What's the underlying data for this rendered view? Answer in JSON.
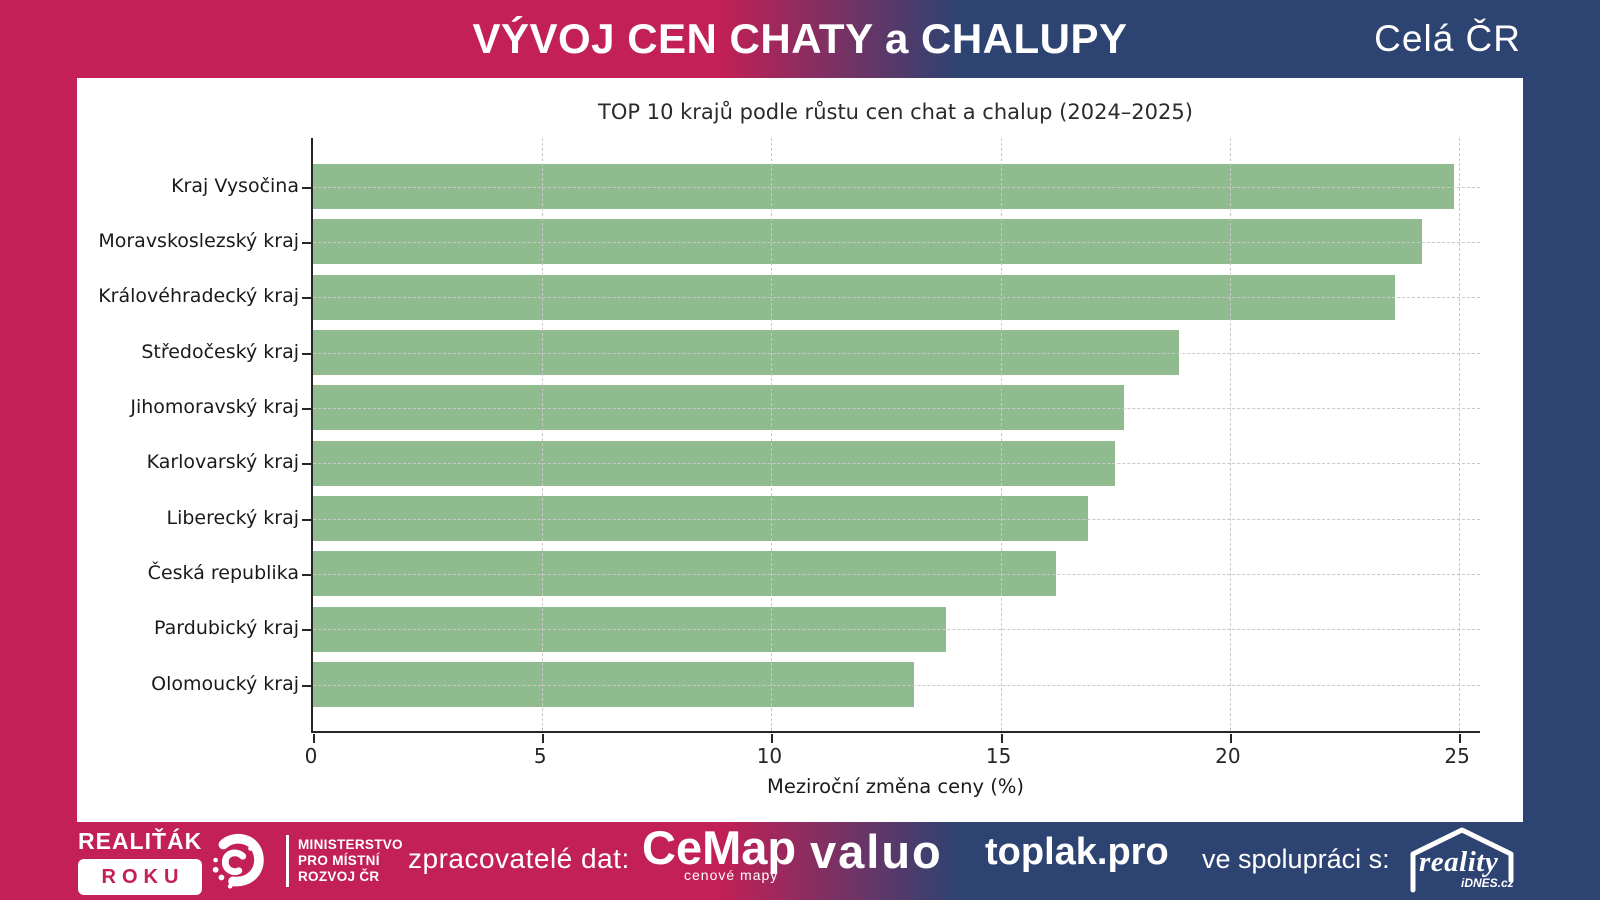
{
  "header": {
    "title": "VÝVOJ CEN CHATY a CHALUPY",
    "region": "Celá ČR"
  },
  "chart_data": {
    "type": "bar",
    "orientation": "horizontal",
    "title": "TOP 10 krajů podle růstu cen chat a chalup (2024–2025)",
    "categories": [
      "Kraj Vysočina",
      "Moravskoslezský kraj",
      "Královéhradecký kraj",
      "Středočeský kraj",
      "Jihomoravský kraj",
      "Karlovarský kraj",
      "Liberecký kraj",
      "Česká republika",
      "Pardubický kraj",
      "Olomoucký kraj"
    ],
    "values": [
      24.9,
      24.2,
      23.6,
      18.9,
      17.7,
      17.5,
      16.9,
      16.2,
      13.8,
      13.1
    ],
    "xlabel": "Meziroční změna ceny (%)",
    "xticks": [
      0,
      5,
      10,
      15,
      20,
      25
    ],
    "xlim": [
      0,
      25.5
    ],
    "grid": "dashed, both axes, drawn over bars",
    "legend": "none",
    "bar_color": "#8fbb8e"
  },
  "footer": {
    "realitak_line1": "REALIŤÁK",
    "realitak_line2": "ROKU",
    "ministry_lines": [
      "MINISTERSTVO",
      "PRO MÍSTNÍ",
      "ROZVOJ ČR"
    ],
    "data_processors_label": "zpracovatelé dat:",
    "cemap_label": "CeMap",
    "cemap_sublabel": "cenové mapy",
    "valuo_label": "valuo",
    "toplak_label": "toplak.pro",
    "cooperation_label": "ve spolupráci s:",
    "reality_label": "reality",
    "reality_sublabel": "iDNES.cz"
  },
  "colors": {
    "crimson": "#c22056",
    "dark_blue": "#2d4372",
    "bar_green": "#8fbb8e",
    "grid_gray": "#c9c9c9"
  }
}
